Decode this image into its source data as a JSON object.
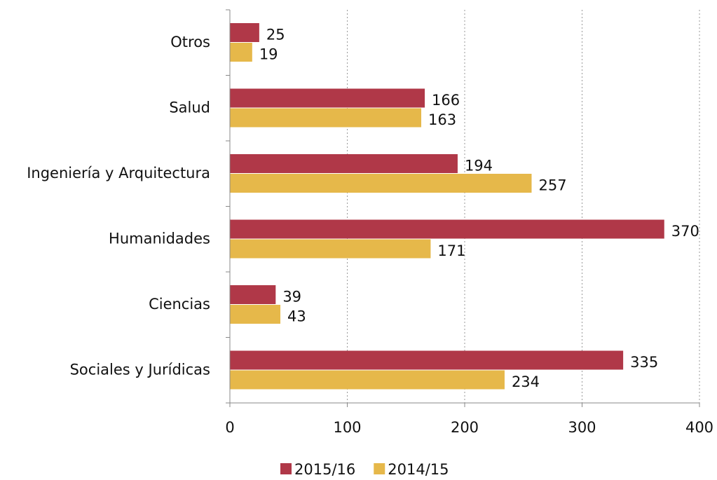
{
  "chart_data": {
    "type": "barh",
    "categories": [
      "Otros",
      "Salud",
      "Ingeniería y Arquitectura",
      "Humanidades",
      "Ciencias",
      "Sociales y Jurídicas"
    ],
    "series": [
      {
        "name": "2015/16",
        "color": "#b03848",
        "values": [
          25,
          166,
          194,
          370,
          39,
          335
        ]
      },
      {
        "name": "2014/15",
        "color": "#e6b84a",
        "values": [
          19,
          163,
          257,
          171,
          43,
          234
        ]
      }
    ],
    "xlim": [
      0,
      400
    ],
    "xticks": [
      0,
      100,
      200,
      300,
      400
    ],
    "grid": true,
    "legend": "bottom"
  }
}
